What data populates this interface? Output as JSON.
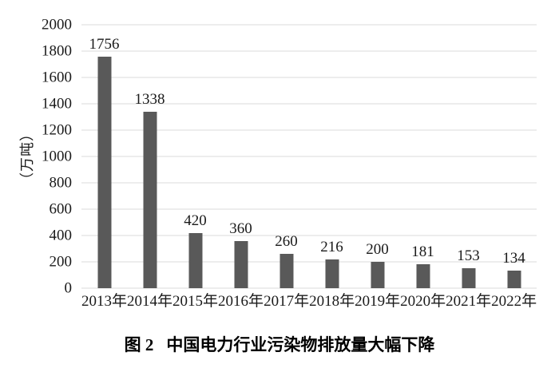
{
  "figure": {
    "caption_prefix": "图 2",
    "caption_title": "中国电力行业污染物排放量大幅下降"
  },
  "chart_data": {
    "type": "bar",
    "title": "图 2  中国电力行业污染物排放量大幅下降",
    "categories": [
      "2013年",
      "2014年",
      "2015年",
      "2016年",
      "2017年",
      "2018年",
      "2019年",
      "2020年",
      "2021年",
      "2022年"
    ],
    "values": [
      1756,
      1338,
      420,
      360,
      260,
      216,
      200,
      181,
      153,
      134
    ],
    "value_labels": [
      "1756",
      "1338",
      "420",
      "360",
      "260",
      "216",
      "200",
      "181",
      "153",
      "134"
    ],
    "xlabel": "",
    "ylabel": "（万吨）",
    "ylim": [
      0,
      2000
    ],
    "yticks": [
      0,
      200,
      400,
      600,
      800,
      1000,
      1200,
      1400,
      1600,
      1800,
      2000
    ],
    "grid": true,
    "legend": "none",
    "bar_color": "#595959",
    "gridline_color": "#ededed",
    "text_color": "#1a1a1a",
    "background_color": "#ffffff"
  }
}
